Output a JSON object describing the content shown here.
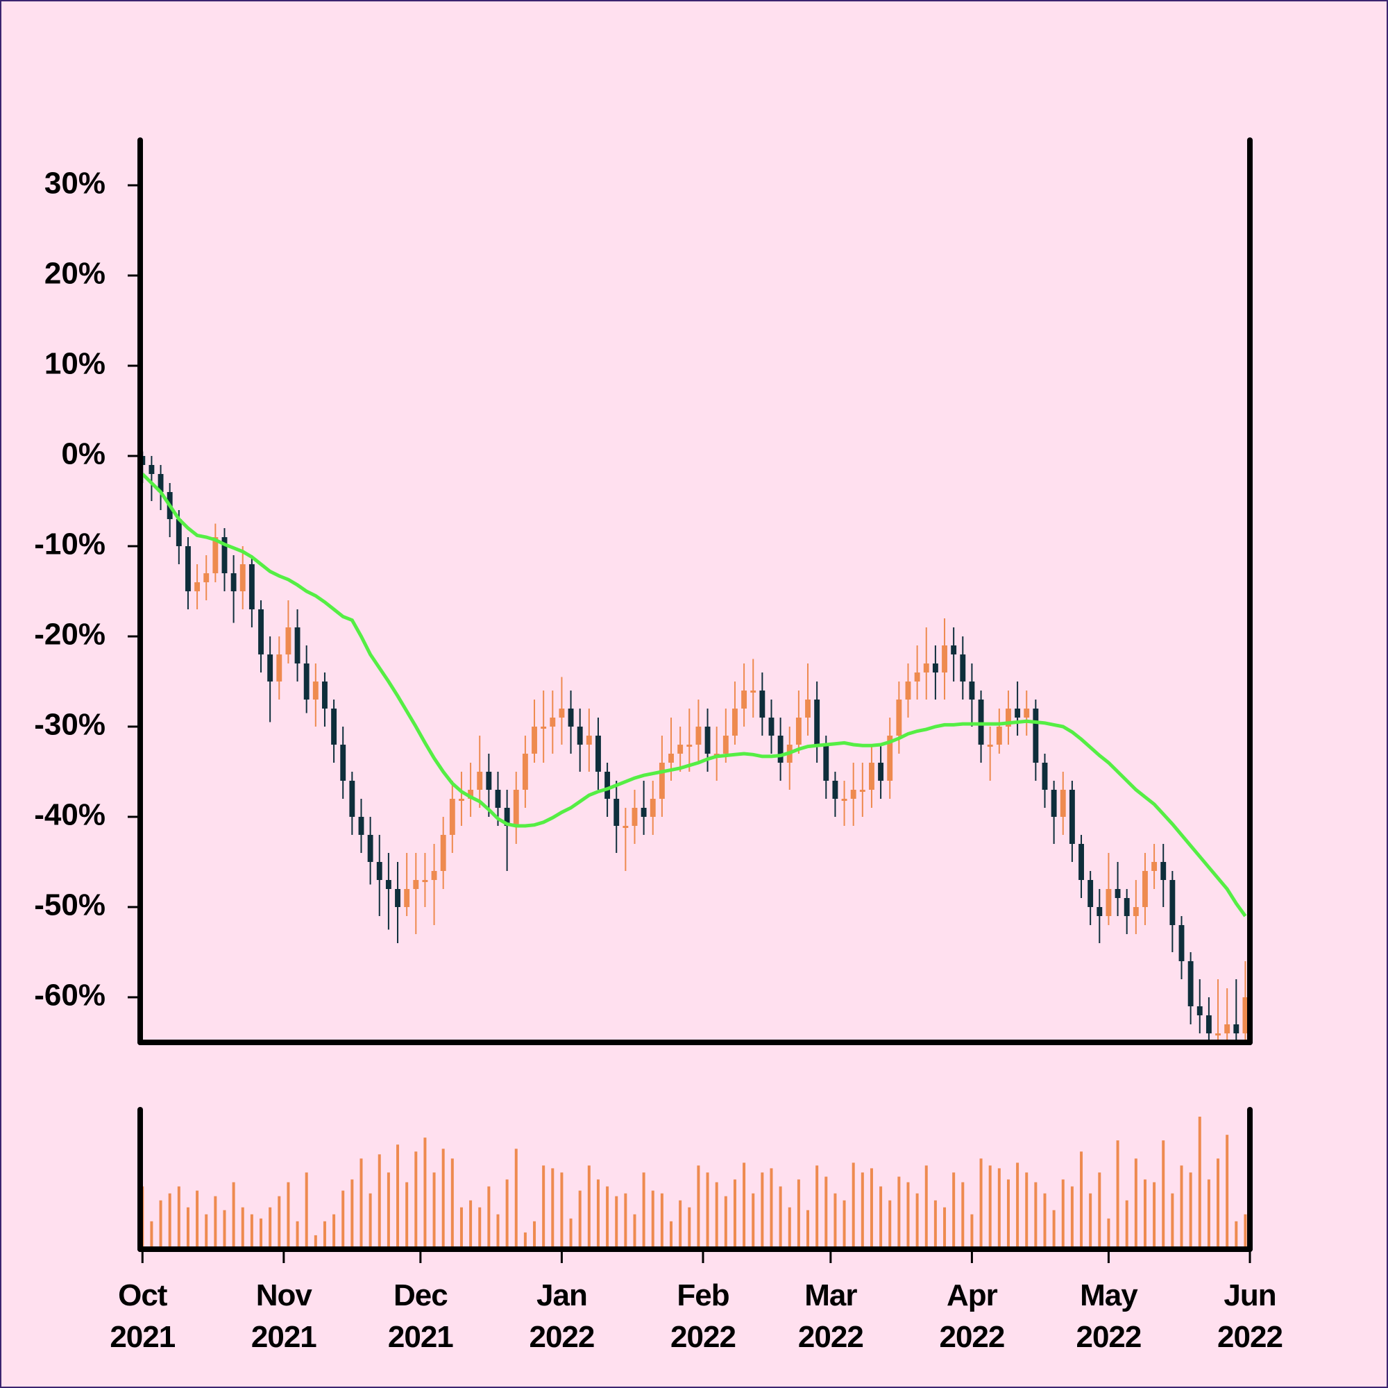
{
  "chart_data": {
    "type": "candlestick",
    "x": [
      0,
      2,
      4,
      6,
      8,
      10,
      12,
      14,
      16,
      18,
      20,
      22,
      24,
      26,
      28,
      30,
      32,
      34,
      36,
      38,
      40,
      42,
      44,
      46,
      48,
      50,
      52,
      54,
      56,
      58,
      60,
      62,
      64,
      66,
      68,
      70,
      72,
      74,
      76,
      78,
      80,
      82,
      84,
      86,
      88,
      90,
      92,
      94,
      96,
      98,
      100,
      102,
      104,
      106,
      108,
      110,
      112,
      114,
      116,
      118,
      120,
      122,
      124,
      126,
      128,
      130,
      132,
      134,
      136,
      138,
      140,
      142,
      144,
      146,
      148,
      150,
      152,
      154,
      156,
      158,
      160,
      162,
      164,
      166,
      168,
      170,
      172,
      174,
      176,
      178,
      180,
      182,
      184,
      186,
      188,
      190,
      192,
      194,
      196,
      198,
      200,
      202,
      204,
      206,
      208,
      210,
      212,
      214,
      216,
      218,
      220,
      222,
      224,
      226,
      228,
      230,
      232,
      234,
      236,
      238,
      240,
      242
    ],
    "open": [
      0,
      -1,
      -2,
      -4,
      -7,
      -10,
      -15,
      -14,
      -13,
      -9,
      -13,
      -15,
      -12,
      -17,
      -22,
      -25,
      -22,
      -19,
      -23,
      -27,
      -25,
      -28,
      -32,
      -36,
      -40,
      -42,
      -45,
      -47,
      -48,
      -50,
      -48,
      -47,
      -47,
      -46,
      -42,
      -38,
      -38,
      -37,
      -35,
      -37,
      -39,
      -41,
      -37,
      -33,
      -30,
      -30,
      -29,
      -28,
      -30,
      -32,
      -31,
      -35,
      -38,
      -41,
      -41,
      -39,
      -40,
      -38,
      -34,
      -33,
      -32,
      -32,
      -30,
      -33,
      -33,
      -31,
      -28,
      -26,
      -26,
      -29,
      -31,
      -34,
      -32,
      -29,
      -27,
      -32,
      -36,
      -38,
      -38,
      -37,
      -37,
      -34,
      -36,
      -31,
      -27,
      -25,
      -24,
      -23,
      -24,
      -21,
      -22,
      -25,
      -27,
      -32,
      -32,
      -30,
      -28,
      -29,
      -28,
      -34,
      -37,
      -40,
      -37,
      -43,
      -47,
      -50,
      -51,
      -48,
      -49,
      -51,
      -50,
      -46,
      -45,
      -47,
      -52,
      -56,
      -61,
      -62,
      -64,
      -64,
      -63,
      -64
    ],
    "high": [
      0.5,
      0,
      -1,
      -3,
      -6,
      -9,
      -12,
      -11,
      -7.5,
      -8,
      -11,
      -10,
      -11,
      -16,
      -20,
      -20,
      -16,
      -17,
      -21,
      -23,
      -24,
      -27,
      -30,
      -35,
      -38,
      -40,
      -42,
      -44,
      -45,
      -44,
      -44,
      -44,
      -43,
      -40,
      -36,
      -35,
      -34,
      -31,
      -33,
      -35,
      -37,
      -35,
      -31,
      -27,
      -26,
      -26,
      -24.5,
      -26,
      -28,
      -28,
      -29,
      -34,
      -36,
      -39,
      -37,
      -36,
      -36,
      -31,
      -29,
      -30,
      -28,
      -27,
      -28,
      -30,
      -28,
      -25,
      -23,
      -22.5,
      -24,
      -27,
      -29,
      -30,
      -26,
      -23,
      -25,
      -31,
      -35,
      -36,
      -34,
      -34,
      -32,
      -32,
      -29,
      -25,
      -23,
      -21,
      -19,
      -21,
      -18,
      -19,
      -20,
      -23,
      -26,
      -30,
      -28,
      -26,
      -25,
      -26,
      -27,
      -33,
      -36,
      -35,
      -36,
      -42,
      -46,
      -48,
      -44,
      -45,
      -48,
      -47,
      -44,
      -43,
      -43,
      -46,
      -51,
      -55,
      -58,
      -60,
      -58,
      -59,
      -58,
      -56
    ],
    "low": [
      -3,
      -5,
      -6,
      -9,
      -12,
      -17,
      -17,
      -16,
      -14,
      -15,
      -18.5,
      -17,
      -19,
      -24,
      -29.5,
      -27,
      -23,
      -25,
      -28.5,
      -30,
      -30,
      -34,
      -38,
      -42,
      -44,
      -47.5,
      -51,
      -52.5,
      -54,
      -51,
      -53,
      -50,
      -52,
      -48,
      -44,
      -41,
      -40,
      -39,
      -40,
      -41,
      -46,
      -43,
      -39,
      -34,
      -34,
      -33,
      -32,
      -33,
      -35,
      -35,
      -37,
      -40,
      -44,
      -46,
      -43,
      -42,
      -42,
      -40,
      -36,
      -35,
      -35,
      -34,
      -35,
      -36,
      -34,
      -32,
      -30,
      -29,
      -31,
      -33,
      -36,
      -37,
      -33,
      -31,
      -34,
      -38,
      -40,
      -41,
      -41,
      -40,
      -39,
      -38,
      -38,
      -33,
      -29,
      -27,
      -27,
      -27,
      -27,
      -25,
      -27,
      -30,
      -34,
      -36,
      -33,
      -32,
      -31,
      -31,
      -36,
      -39,
      -43,
      -42,
      -45,
      -49,
      -52,
      -54,
      -52,
      -51,
      -53,
      -53,
      -52,
      -48,
      -50,
      -55,
      -58,
      -63,
      -64,
      -65,
      -65,
      -65,
      -65,
      -65
    ],
    "close": [
      -1,
      -2,
      -4,
      -7,
      -10,
      -15,
      -14,
      -13,
      -9,
      -13,
      -15,
      -12,
      -17,
      -22,
      -25,
      -22,
      -19,
      -23,
      -27,
      -25,
      -28,
      -32,
      -36,
      -40,
      -42,
      -45,
      -47,
      -48,
      -50,
      -48,
      -47,
      -47,
      -46,
      -42,
      -38,
      -38,
      -37,
      -35,
      -37,
      -39,
      -41,
      -37,
      -33,
      -30,
      -30,
      -29,
      -28,
      -30,
      -32,
      -31,
      -35,
      -38,
      -41,
      -41,
      -39,
      -40,
      -38,
      -34,
      -33,
      -32,
      -32,
      -30,
      -33,
      -33,
      -31,
      -28,
      -26,
      -26,
      -29,
      -31,
      -34,
      -32,
      -29,
      -27,
      -32,
      -36,
      -38,
      -38,
      -37,
      -37,
      -34,
      -36,
      -31,
      -27,
      -25,
      -24,
      -23,
      -24,
      -21,
      -22,
      -25,
      -27,
      -32,
      -32,
      -30,
      -28,
      -29,
      -28,
      -34,
      -37,
      -40,
      -37,
      -43,
      -47,
      -50,
      -51,
      -48,
      -49,
      -51,
      -50,
      -46,
      -45,
      -47,
      -52,
      -56,
      -61,
      -62,
      -64,
      -64,
      -63,
      -64,
      -60
    ],
    "up_color": "#ee8a4f",
    "down_color": "#0e2e3b",
    "xlim": [
      -0.5,
      243
    ],
    "xticks": [
      {
        "value": 0,
        "label": "Oct\n2021"
      },
      {
        "value": 31,
        "label": "Nov\n2021"
      },
      {
        "value": 61,
        "label": "Dec\n2021"
      },
      {
        "value": 92,
        "label": "Jan\n2022"
      },
      {
        "value": 123,
        "label": "Feb\n2022"
      },
      {
        "value": 151,
        "label": "Mar\n2022"
      },
      {
        "value": 182,
        "label": "Apr\n2022"
      },
      {
        "value": 212,
        "label": "May\n2022"
      },
      {
        "value": 243,
        "label": "Jun\n2022"
      }
    ],
    "ylim": [
      -65,
      35
    ],
    "yticks": [
      {
        "value": -60,
        "label": "-60%"
      },
      {
        "value": -50,
        "label": "-50%"
      },
      {
        "value": -40,
        "label": "-40%"
      },
      {
        "value": -30,
        "label": "-30%"
      },
      {
        "value": -20,
        "label": "-20%"
      },
      {
        "value": -10,
        "label": "-10%"
      },
      {
        "value": 0,
        "label": "0%"
      },
      {
        "value": 10,
        "label": "10%"
      },
      {
        "value": 20,
        "label": "20%"
      },
      {
        "value": 30,
        "label": "30%"
      }
    ],
    "moving_average": {
      "color": "#55ee44",
      "values": [
        -2,
        -3,
        -4,
        -5.5,
        -7,
        -8,
        -8.8,
        -9,
        -9.3,
        -9.8,
        -10.2,
        -10.6,
        -11.2,
        -12,
        -12.8,
        -13.3,
        -13.7,
        -14.3,
        -15,
        -15.5,
        -16.2,
        -17,
        -17.8,
        -18.2,
        -20,
        -22,
        -23.5,
        -25,
        -26.6,
        -28.3,
        -30,
        -31.8,
        -33.5,
        -35,
        -36.3,
        -37.2,
        -37.8,
        -38.3,
        -39.2,
        -40.2,
        -40.8,
        -41,
        -41,
        -40.9,
        -40.6,
        -40.1,
        -39.5,
        -39,
        -38.3,
        -37.6,
        -37.2,
        -36.9,
        -36.5,
        -36.1,
        -35.7,
        -35.4,
        -35.2,
        -35,
        -34.8,
        -34.6,
        -34.3,
        -34,
        -33.6,
        -33.3,
        -33.2,
        -33.1,
        -33,
        -33.1,
        -33.3,
        -33.3,
        -33.2,
        -32.9,
        -32.5,
        -32.2,
        -32.1,
        -32,
        -31.9,
        -31.8,
        -32,
        -32.1,
        -32.1,
        -32,
        -31.7,
        -31.3,
        -30.8,
        -30.5,
        -30.3,
        -30,
        -29.8,
        -29.8,
        -29.7,
        -29.7,
        -29.7,
        -29.7,
        -29.7,
        -29.6,
        -29.5,
        -29.4,
        -29.5,
        -29.6,
        -29.8,
        -30,
        -30.6,
        -31.4,
        -32.3,
        -33.2,
        -34,
        -35,
        -36,
        -37,
        -37.8,
        -38.6,
        -39.7,
        -40.8,
        -42,
        -43.2,
        -44.4,
        -45.6,
        -46.8,
        -48,
        -49.6,
        -51
      ]
    },
    "volume": {
      "color": "#ee8a4f",
      "ylim": [
        0,
        100
      ],
      "values": [
        45,
        20,
        35,
        40,
        45,
        30,
        42,
        25,
        38,
        28,
        48,
        30,
        25,
        22,
        30,
        38,
        48,
        20,
        55,
        10,
        20,
        25,
        42,
        50,
        65,
        40,
        68,
        55,
        75,
        48,
        70,
        80,
        55,
        72,
        65,
        30,
        35,
        30,
        45,
        25,
        50,
        72,
        12,
        20,
        60,
        58,
        55,
        22,
        42,
        60,
        50,
        45,
        38,
        40,
        25,
        55,
        42,
        40,
        20,
        35,
        30,
        60,
        55,
        48,
        38,
        50,
        62,
        40,
        55,
        58,
        45,
        30,
        50,
        28,
        60,
        52,
        40,
        35,
        62,
        55,
        58,
        45,
        35,
        52,
        48,
        40,
        60,
        35,
        30,
        55,
        48,
        25,
        65,
        60,
        58,
        50,
        62,
        55,
        48,
        40,
        28,
        50,
        45,
        70,
        40,
        55,
        22,
        78,
        35,
        65,
        50,
        48,
        78,
        40,
        60,
        55,
        95,
        50,
        65,
        82,
        20,
        25
      ]
    }
  }
}
